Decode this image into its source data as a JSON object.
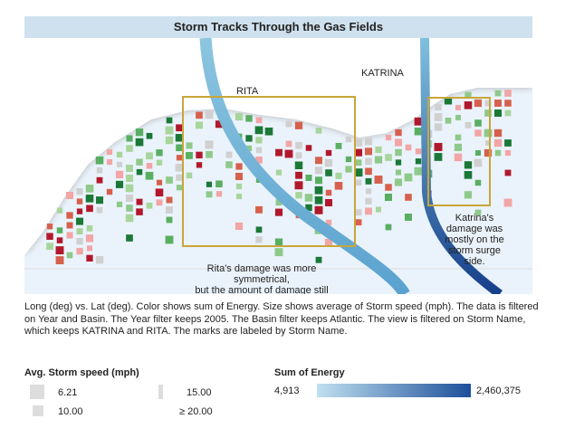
{
  "title": "Storm Tracks Through the Gas Fields",
  "map": {
    "storm_labels": [
      "RITA",
      "KATRINA"
    ],
    "rita_note": [
      "Rita's damage was more",
      "symmetrical,",
      "but the amount of damage still"
    ],
    "katrina_note": [
      "Katrina's",
      "damage was",
      "mostly on the",
      "storm surge",
      "side."
    ]
  },
  "caption": "Long (deg) vs. Lat (deg).  Color shows sum of Energy.  Size shows average of Storm speed (mph). The data is filtered on Year and Basin. The Year filter keeps 2005. The Basin filter keeps Atlantic. The view is filtered on Storm Name, which keeps KATRINA and RITA. The marks are labeled by Storm Name.",
  "size_legend": {
    "title": "Avg. Storm speed (mph)",
    "items": [
      "6.21",
      "15.00",
      "10.00",
      "≥ 20.00"
    ]
  },
  "color_legend": {
    "title": "Sum of Energy",
    "min": "4,913",
    "max": "2,460,375"
  }
}
